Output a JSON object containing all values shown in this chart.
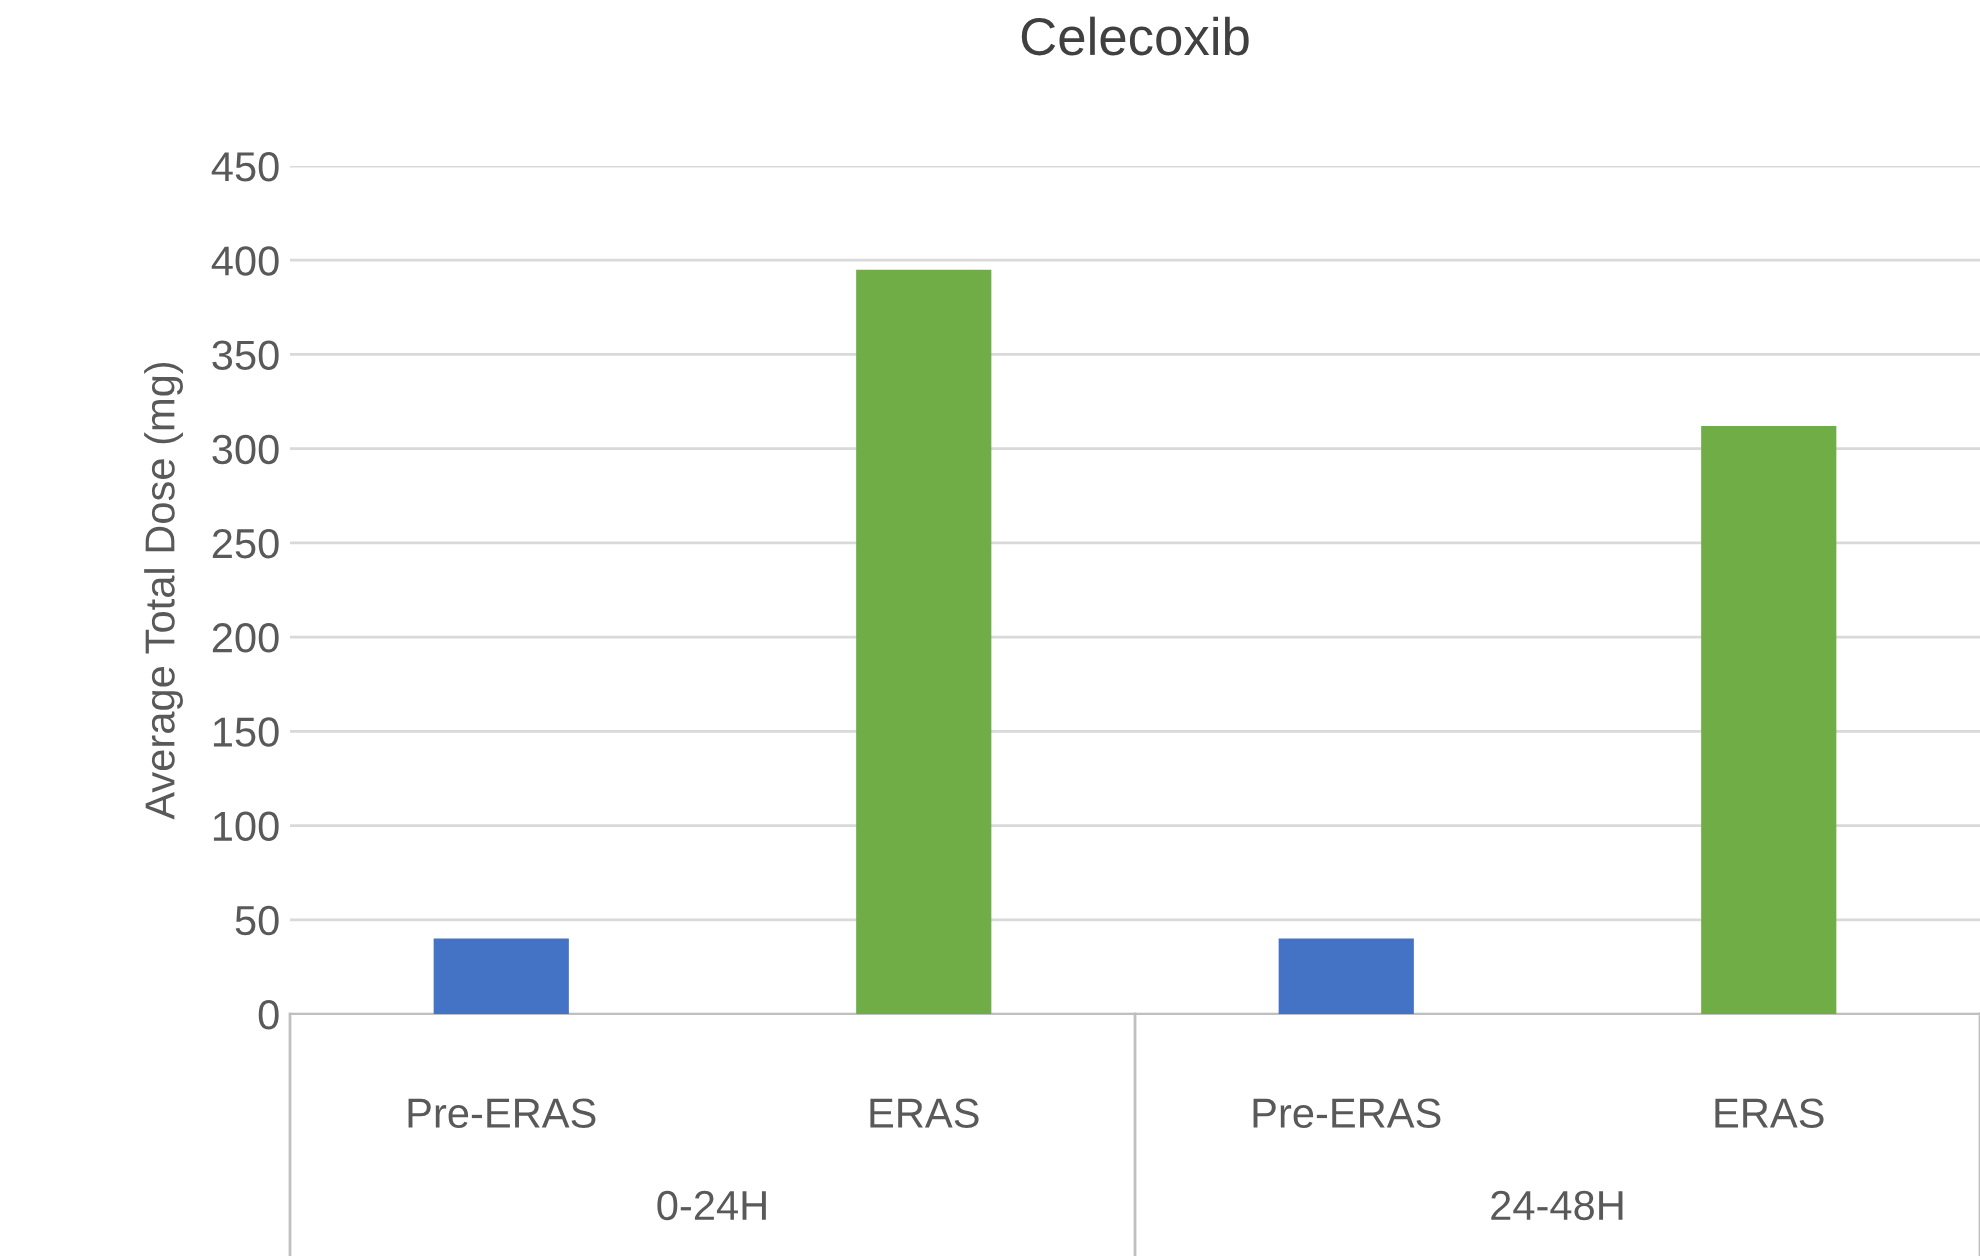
{
  "chart_data": {
    "type": "bar",
    "title": "Celecoxib",
    "ylabel": "Average Total Dose (mg)",
    "categories": [
      "Pre-ERAS",
      "ERAS",
      "Pre-ERAS",
      "ERAS"
    ],
    "values": [
      40,
      395,
      40,
      312
    ],
    "colors": [
      "#4472c4",
      "#70ad47",
      "#4472c4",
      "#70ad47"
    ],
    "ylim": [
      0,
      450
    ],
    "yticks": [
      0,
      50,
      100,
      150,
      200,
      250,
      300,
      350,
      400,
      450
    ],
    "grid": "y",
    "annotations": [
      "0-24H",
      "24-48H"
    ]
  }
}
